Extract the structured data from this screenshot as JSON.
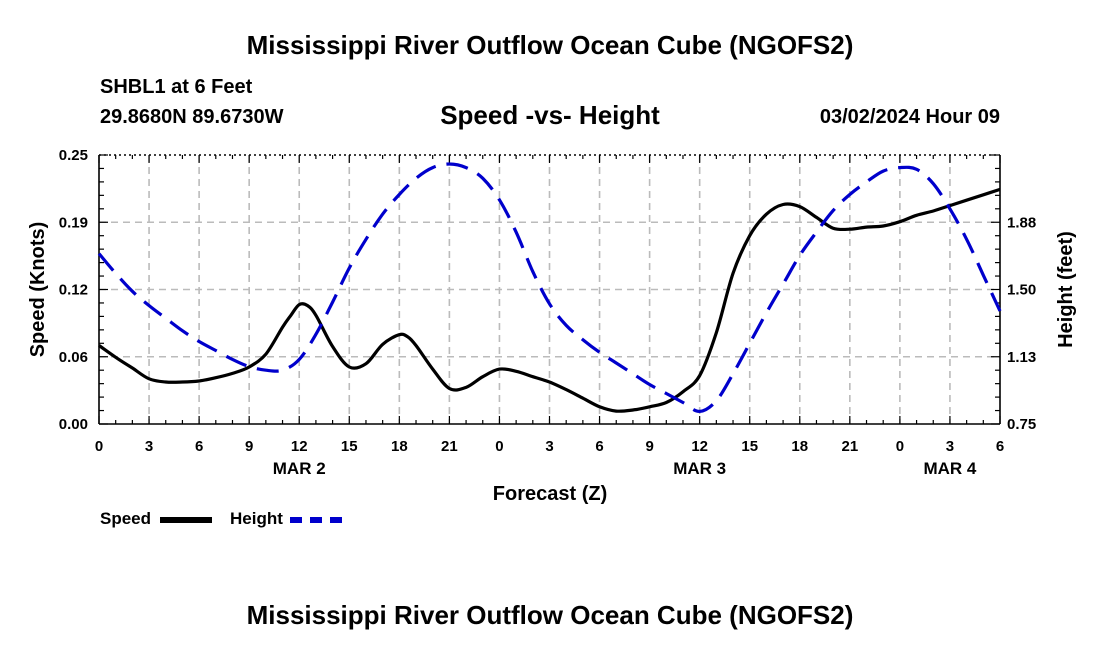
{
  "header": {
    "title": "Mississippi River Outflow Ocean Cube (NGOFS2)",
    "station": "SHBL1 at 6 Feet",
    "coords": "29.8680N  89.6730W",
    "subtitle": "Speed -vs- Height",
    "datetime": "03/02/2024 Hour 09"
  },
  "footer": {
    "title": "Mississippi River Outflow Ocean Cube (NGOFS2)"
  },
  "legend": {
    "speed_label": "Speed",
    "height_label": "Height",
    "speed_color": "#000000",
    "height_color": "#0000cc"
  },
  "chart_data": {
    "type": "line",
    "title": "Speed -vs- Height",
    "xlabel": "Forecast (Z)",
    "ylabel": "Speed (Knots)",
    "y2label": "Height (feet)",
    "xlim": [
      0,
      54
    ],
    "ylim": [
      0,
      0.25
    ],
    "y2lim": [
      0.75,
      2.25
    ],
    "grid": true,
    "x_ticks": [
      0,
      3,
      6,
      9,
      12,
      15,
      18,
      21,
      24,
      27,
      30,
      33,
      36,
      39,
      42,
      45,
      48,
      51,
      54
    ],
    "x_tick_labels": [
      "0",
      "3",
      "6",
      "9",
      "12",
      "15",
      "18",
      "21",
      "0",
      "3",
      "6",
      "9",
      "12",
      "15",
      "18",
      "21",
      "0",
      "3",
      "6"
    ],
    "y_ticks": [
      0,
      0.0625,
      0.125,
      0.1875,
      0.25
    ],
    "y_tick_labels": [
      "0.00",
      "0.06",
      "0.12",
      "0.19",
      "0.25"
    ],
    "y2_ticks": [
      0.75,
      1.125,
      1.5,
      1.875
    ],
    "y2_tick_labels": [
      "0.75",
      "1.13",
      "1.50",
      "1.88"
    ],
    "day_labels": [
      {
        "x": 12,
        "label": "MAR 2"
      },
      {
        "x": 36,
        "label": "MAR 3"
      },
      {
        "x": 51,
        "label": "MAR 4"
      }
    ],
    "series": [
      {
        "name": "Speed",
        "axis": "left",
        "color": "#000000",
        "dash": "solid",
        "x": [
          0,
          1,
          2,
          3,
          4,
          5,
          6,
          7,
          8,
          9,
          10,
          11,
          11.5,
          12,
          12.5,
          13,
          14,
          15,
          16,
          17,
          18,
          18.5,
          19,
          20,
          21,
          22,
          23,
          24,
          25,
          26,
          27,
          28,
          29,
          30,
          31,
          32,
          33,
          34,
          35,
          36,
          37,
          38,
          39,
          40,
          41,
          42,
          43,
          44,
          45,
          46,
          47,
          48,
          49,
          50,
          51,
          52,
          53,
          54
        ],
        "values": [
          0.073,
          0.062,
          0.052,
          0.042,
          0.039,
          0.039,
          0.04,
          0.043,
          0.047,
          0.053,
          0.065,
          0.09,
          0.101,
          0.111,
          0.11,
          0.101,
          0.072,
          0.053,
          0.056,
          0.074,
          0.083,
          0.081,
          0.073,
          0.051,
          0.033,
          0.034,
          0.044,
          0.051,
          0.049,
          0.044,
          0.039,
          0.032,
          0.024,
          0.016,
          0.012,
          0.013,
          0.016,
          0.02,
          0.03,
          0.045,
          0.085,
          0.14,
          0.175,
          0.195,
          0.204,
          0.202,
          0.192,
          0.182,
          0.181,
          0.183,
          0.184,
          0.188,
          0.194,
          0.198,
          0.203,
          0.208,
          0.213,
          0.218
        ]
      },
      {
        "name": "Height",
        "axis": "right",
        "color": "#0000cc",
        "dash": "dashed",
        "x": [
          0,
          1,
          2,
          3,
          4,
          5,
          6,
          7,
          8,
          9,
          10,
          11,
          12,
          13,
          14,
          15,
          16,
          17,
          18,
          19,
          20,
          21,
          22,
          23,
          24,
          25,
          26,
          27,
          28,
          29,
          30,
          31,
          32,
          33,
          34,
          35,
          36,
          37,
          38,
          39,
          40,
          41,
          42,
          43,
          44,
          45,
          46,
          47,
          48,
          49,
          50,
          51,
          52,
          53,
          54
        ],
        "values": [
          1.7,
          1.59,
          1.49,
          1.41,
          1.34,
          1.27,
          1.21,
          1.16,
          1.11,
          1.07,
          1.05,
          1.05,
          1.11,
          1.25,
          1.43,
          1.62,
          1.78,
          1.92,
          2.03,
          2.12,
          2.18,
          2.2,
          2.18,
          2.12,
          2.0,
          1.82,
          1.6,
          1.42,
          1.3,
          1.22,
          1.15,
          1.09,
          1.03,
          0.97,
          0.92,
          0.87,
          0.82,
          0.88,
          1.03,
          1.2,
          1.37,
          1.53,
          1.69,
          1.82,
          1.94,
          2.03,
          2.1,
          2.16,
          2.18,
          2.17,
          2.09,
          1.95,
          1.78,
          1.58,
          1.38
        ]
      }
    ]
  }
}
